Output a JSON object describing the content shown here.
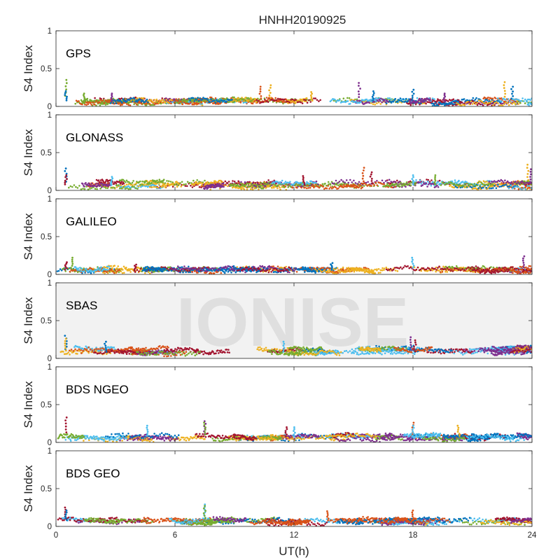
{
  "chart_data": {
    "type": "scatter",
    "title": "HNHH20190925",
    "xlabel": "UT(h)",
    "ylabel": "S4 Index",
    "xlim": [
      0,
      24
    ],
    "ylim": [
      0,
      1
    ],
    "xticks": [
      0,
      6,
      12,
      18,
      24
    ],
    "xtick_labels": [
      "0",
      "6",
      "12",
      "18",
      "24"
    ],
    "yticks": [
      0,
      0.5,
      1
    ],
    "ytick_labels": [
      "0",
      "0.5",
      "1"
    ],
    "grid": false,
    "series_colors": [
      "#0072BD",
      "#D95319",
      "#EDB120",
      "#7E2F8E",
      "#77AC30",
      "#4DBEEE",
      "#A2142F"
    ],
    "watermark": {
      "text": "IONISE",
      "panel": 3
    },
    "panels": [
      {
        "label": "GPS",
        "baseline": [
          0.04,
          0.11
        ],
        "spikes": [
          [
            0.5,
            0.35
          ],
          [
            0.5,
            0.2
          ],
          [
            1.4,
            0.17
          ],
          [
            2.8,
            0.17
          ],
          [
            10.3,
            0.26
          ],
          [
            10.8,
            0.28
          ],
          [
            12.9,
            0.19
          ],
          [
            15.3,
            0.31
          ],
          [
            16.0,
            0.2
          ],
          [
            18.0,
            0.22
          ],
          [
            19.6,
            0.17
          ],
          [
            22.6,
            0.32
          ],
          [
            23.0,
            0.26
          ]
        ]
      },
      {
        "label": "GLONASS",
        "baseline": [
          0.04,
          0.14
        ],
        "spikes": [
          [
            0.5,
            0.29
          ],
          [
            0.5,
            0.2
          ],
          [
            2.8,
            0.18
          ],
          [
            12.5,
            0.19
          ],
          [
            15.5,
            0.3
          ],
          [
            15.9,
            0.24
          ],
          [
            18.0,
            0.2
          ],
          [
            19.1,
            0.2
          ],
          [
            23.8,
            0.34
          ],
          [
            23.9,
            0.28
          ]
        ]
      },
      {
        "label": "GALILEO",
        "baseline": [
          0.04,
          0.1
        ],
        "spikes": [
          [
            0.5,
            0.16
          ],
          [
            0.8,
            0.22
          ],
          [
            4.0,
            0.13
          ],
          [
            13.9,
            0.15
          ],
          [
            18.0,
            0.22
          ],
          [
            23.6,
            0.24
          ]
        ]
      },
      {
        "label": "SBAS",
        "baseline": [
          0.06,
          0.18
        ],
        "spikes": [
          [
            0.5,
            0.3
          ],
          [
            0.5,
            0.26
          ],
          [
            2.5,
            0.22
          ],
          [
            11.5,
            0.22
          ],
          [
            17.9,
            0.28
          ],
          [
            18.1,
            0.24
          ]
        ]
      },
      {
        "label": "BDS NGEO",
        "baseline": [
          0.04,
          0.12
        ],
        "spikes": [
          [
            0.5,
            0.33
          ],
          [
            4.6,
            0.22
          ],
          [
            7.5,
            0.28
          ],
          [
            7.5,
            0.26
          ],
          [
            11.6,
            0.2
          ],
          [
            12.0,
            0.2
          ],
          [
            18.0,
            0.26
          ],
          [
            18.0,
            0.22
          ],
          [
            20.3,
            0.22
          ]
        ]
      },
      {
        "label": "BDS GEO",
        "baseline": [
          0.04,
          0.12
        ],
        "spikes": [
          [
            0.5,
            0.25
          ],
          [
            0.5,
            0.21
          ],
          [
            7.5,
            0.29
          ],
          [
            7.5,
            0.27
          ],
          [
            13.7,
            0.2
          ],
          [
            18.0,
            0.21
          ]
        ]
      }
    ]
  }
}
